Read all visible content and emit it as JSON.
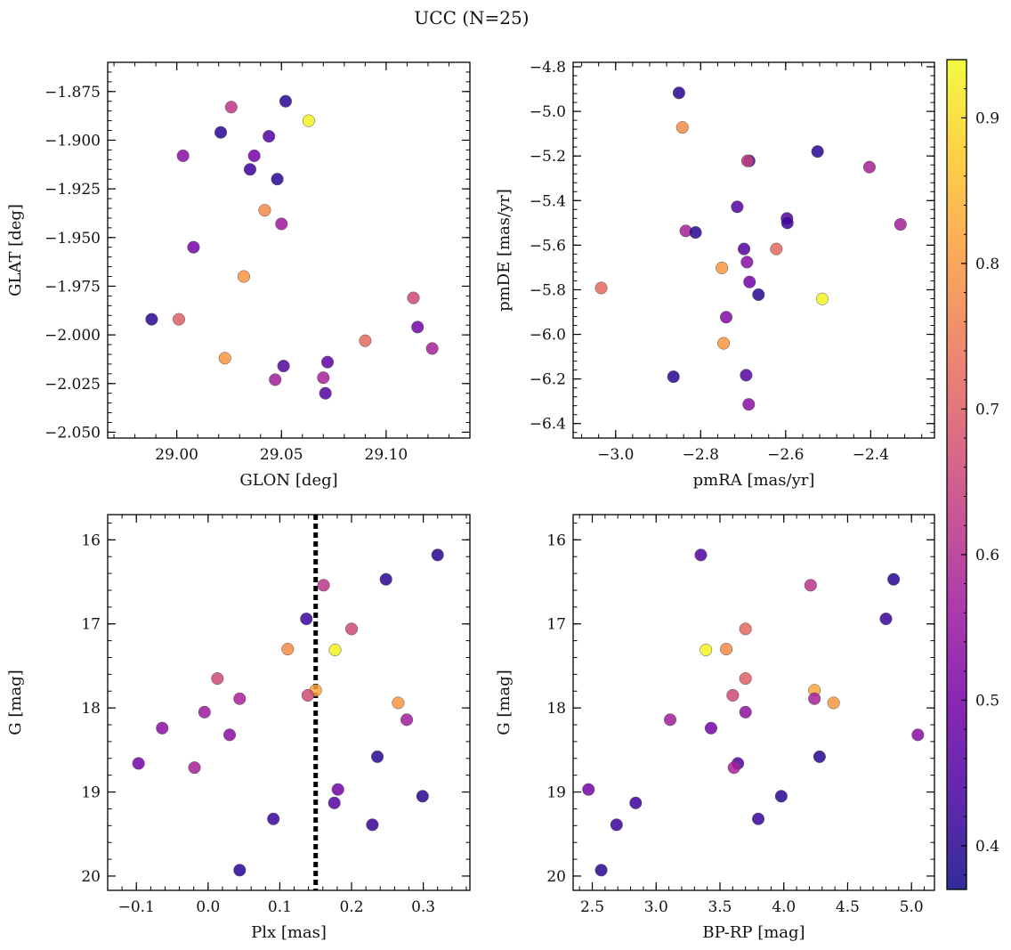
{
  "figure": {
    "title": "UCC (N=25)",
    "colorbar": {
      "range": [
        0.37,
        0.94
      ],
      "ticks": [
        0.4,
        0.5,
        0.6,
        0.7,
        0.8,
        0.9
      ],
      "tick_labels": [
        "0.4",
        "0.5",
        "0.6",
        "0.7",
        "0.8",
        "0.9"
      ],
      "colormap": [
        "#0d0887",
        "#46039f",
        "#7201a8",
        "#9c179e",
        "#bd3786",
        "#d8576b",
        "#ed7953",
        "#fb9f3a",
        "#fdca26",
        "#f0f921"
      ]
    }
  },
  "chart_data": [
    {
      "id": "glon-glat",
      "type": "scatter",
      "xlabel": "GLON [deg]",
      "ylabel": "GLAT [deg]",
      "xlim": [
        28.967,
        29.14
      ],
      "ylim": [
        -2.053,
        -1.86
      ],
      "xticks": [
        29.0,
        29.05,
        29.1
      ],
      "xtick_labels": [
        "29.00",
        "29.05",
        "29.10"
      ],
      "yticks": [
        -1.875,
        -1.9,
        -1.925,
        -1.95,
        -1.975,
        -2.0,
        -2.025,
        -2.05
      ],
      "ytick_labels": [
        "−1.875",
        "−1.900",
        "−1.925",
        "−1.950",
        "−1.975",
        "−2.000",
        "−2.025",
        "−2.050"
      ],
      "y_inverted": false,
      "points": [
        {
          "x": 29.052,
          "y": -1.88,
          "c": 0.4
        },
        {
          "x": 29.026,
          "y": -1.883,
          "c": 0.62
        },
        {
          "x": 29.063,
          "y": -1.89,
          "c": 0.93
        },
        {
          "x": 29.021,
          "y": -1.896,
          "c": 0.4
        },
        {
          "x": 29.044,
          "y": -1.898,
          "c": 0.45
        },
        {
          "x": 29.003,
          "y": -1.908,
          "c": 0.53
        },
        {
          "x": 29.037,
          "y": -1.908,
          "c": 0.5
        },
        {
          "x": 29.035,
          "y": -1.915,
          "c": 0.42
        },
        {
          "x": 29.048,
          "y": -1.92,
          "c": 0.4
        },
        {
          "x": 29.042,
          "y": -1.936,
          "c": 0.78
        },
        {
          "x": 29.05,
          "y": -1.943,
          "c": 0.56
        },
        {
          "x": 29.008,
          "y": -1.955,
          "c": 0.5
        },
        {
          "x": 29.032,
          "y": -1.97,
          "c": 0.8
        },
        {
          "x": 29.113,
          "y": -1.981,
          "c": 0.66
        },
        {
          "x": 28.988,
          "y": -1.992,
          "c": 0.4
        },
        {
          "x": 29.001,
          "y": -1.992,
          "c": 0.7
        },
        {
          "x": 29.115,
          "y": -1.996,
          "c": 0.5
        },
        {
          "x": 29.09,
          "y": -2.003,
          "c": 0.72
        },
        {
          "x": 29.122,
          "y": -2.007,
          "c": 0.58
        },
        {
          "x": 29.023,
          "y": -2.012,
          "c": 0.8
        },
        {
          "x": 29.072,
          "y": -2.014,
          "c": 0.47
        },
        {
          "x": 29.051,
          "y": -2.016,
          "c": 0.45
        },
        {
          "x": 29.07,
          "y": -2.022,
          "c": 0.58
        },
        {
          "x": 29.047,
          "y": -2.023,
          "c": 0.57
        },
        {
          "x": 29.071,
          "y": -2.03,
          "c": 0.45
        }
      ]
    },
    {
      "id": "pmra-pmde",
      "type": "scatter",
      "xlabel": "pmRA [mas/yr]",
      "ylabel": "pmDE [mas/yr]",
      "xlim": [
        -3.1,
        -2.25
      ],
      "ylim": [
        -6.465,
        -4.78
      ],
      "xticks": [
        -3.0,
        -2.8,
        -2.6,
        -2.4
      ],
      "xtick_labels": [
        "−3.0",
        "−2.8",
        "−2.6",
        "−2.4"
      ],
      "yticks": [
        -4.8,
        -5.0,
        -5.2,
        -5.4,
        -5.6,
        -5.8,
        -6.0,
        -6.2,
        -6.4
      ],
      "ytick_labels": [
        "−4.8",
        "−5.0",
        "−5.2",
        "−5.4",
        "−5.6",
        "−5.8",
        "−6.0",
        "−6.2",
        "−6.4"
      ],
      "y_inverted": false,
      "points": [
        {
          "x": -2.851,
          "y": -4.917,
          "c": 0.4
        },
        {
          "x": -2.843,
          "y": -5.072,
          "c": 0.78
        },
        {
          "x": -2.525,
          "y": -5.18,
          "c": 0.4
        },
        {
          "x": -2.686,
          "y": -5.222,
          "c": 0.4
        },
        {
          "x": -2.69,
          "y": -5.222,
          "c": 0.64
        },
        {
          "x": -2.403,
          "y": -5.25,
          "c": 0.58
        },
        {
          "x": -2.714,
          "y": -5.428,
          "c": 0.45
        },
        {
          "x": -2.597,
          "y": -5.48,
          "c": 0.45
        },
        {
          "x": -2.596,
          "y": -5.5,
          "c": 0.42
        },
        {
          "x": -2.33,
          "y": -5.507,
          "c": 0.57
        },
        {
          "x": -2.835,
          "y": -5.536,
          "c": 0.58
        },
        {
          "x": -2.812,
          "y": -5.543,
          "c": 0.4
        },
        {
          "x": -2.698,
          "y": -5.617,
          "c": 0.45
        },
        {
          "x": -2.622,
          "y": -5.617,
          "c": 0.72
        },
        {
          "x": -2.691,
          "y": -5.676,
          "c": 0.53
        },
        {
          "x": -2.75,
          "y": -5.702,
          "c": 0.8
        },
        {
          "x": -2.685,
          "y": -5.765,
          "c": 0.5
        },
        {
          "x": -3.034,
          "y": -5.792,
          "c": 0.72
        },
        {
          "x": -2.664,
          "y": -5.822,
          "c": 0.4
        },
        {
          "x": -2.514,
          "y": -5.841,
          "c": 0.93
        },
        {
          "x": -2.74,
          "y": -5.923,
          "c": 0.52
        },
        {
          "x": -2.746,
          "y": -6.04,
          "c": 0.8
        },
        {
          "x": -2.693,
          "y": -6.183,
          "c": 0.45
        },
        {
          "x": -2.864,
          "y": -6.19,
          "c": 0.4
        },
        {
          "x": -2.687,
          "y": -6.314,
          "c": 0.53
        }
      ]
    },
    {
      "id": "plx-g",
      "type": "scatter",
      "xlabel": "Plx [mas]",
      "ylabel": "G [mag]",
      "xlim": [
        -0.14,
        0.365
      ],
      "ylim": [
        15.7,
        20.17
      ],
      "xticks": [
        -0.1,
        0.0,
        0.1,
        0.2,
        0.3
      ],
      "xtick_labels": [
        "−0.1",
        "0.0",
        "0.1",
        "0.2",
        "0.3"
      ],
      "yticks": [
        16,
        17,
        18,
        19,
        20
      ],
      "ytick_labels": [
        "16",
        "17",
        "18",
        "19",
        "20"
      ],
      "y_inverted": true,
      "vline": 0.15,
      "points": [
        {
          "x": 0.32,
          "y": 16.18,
          "c": 0.4
        },
        {
          "x": 0.161,
          "y": 16.54,
          "c": 0.62
        },
        {
          "x": 0.248,
          "y": 16.47,
          "c": 0.4
        },
        {
          "x": 0.137,
          "y": 16.94,
          "c": 0.42
        },
        {
          "x": 0.2,
          "y": 17.06,
          "c": 0.66
        },
        {
          "x": 0.111,
          "y": 17.3,
          "c": 0.78
        },
        {
          "x": 0.177,
          "y": 17.31,
          "c": 0.93
        },
        {
          "x": 0.013,
          "y": 17.65,
          "c": 0.66
        },
        {
          "x": 0.15,
          "y": 17.79,
          "c": 0.82
        },
        {
          "x": 0.139,
          "y": 17.85,
          "c": 0.66
        },
        {
          "x": 0.044,
          "y": 17.89,
          "c": 0.58
        },
        {
          "x": 0.265,
          "y": 17.94,
          "c": 0.8
        },
        {
          "x": -0.005,
          "y": 18.05,
          "c": 0.56
        },
        {
          "x": 0.277,
          "y": 18.14,
          "c": 0.57
        },
        {
          "x": -0.064,
          "y": 18.24,
          "c": 0.53
        },
        {
          "x": 0.03,
          "y": 18.32,
          "c": 0.53
        },
        {
          "x": 0.236,
          "y": 18.58,
          "c": 0.4
        },
        {
          "x": -0.097,
          "y": 18.66,
          "c": 0.5
        },
        {
          "x": -0.019,
          "y": 18.71,
          "c": 0.58
        },
        {
          "x": 0.181,
          "y": 18.97,
          "c": 0.5
        },
        {
          "x": 0.299,
          "y": 19.05,
          "c": 0.4
        },
        {
          "x": 0.176,
          "y": 19.13,
          "c": 0.45
        },
        {
          "x": 0.091,
          "y": 19.32,
          "c": 0.42
        },
        {
          "x": 0.229,
          "y": 19.39,
          "c": 0.42
        },
        {
          "x": 0.044,
          "y": 19.93,
          "c": 0.4
        }
      ]
    },
    {
      "id": "bprp-g",
      "type": "scatter",
      "xlabel": "BP-RP [mag]",
      "ylabel": "G [mag]",
      "xlim": [
        2.35,
        5.18
      ],
      "ylim": [
        15.7,
        20.17
      ],
      "xticks": [
        2.5,
        3.0,
        3.5,
        4.0,
        4.5,
        5.0
      ],
      "xtick_labels": [
        "2.5",
        "3.0",
        "3.5",
        "4.0",
        "4.5",
        "5.0"
      ],
      "yticks": [
        16,
        17,
        18,
        19,
        20
      ],
      "ytick_labels": [
        "16",
        "17",
        "18",
        "19",
        "20"
      ],
      "y_inverted": true,
      "points": [
        {
          "x": 3.35,
          "y": 16.18,
          "c": 0.45
        },
        {
          "x": 4.86,
          "y": 16.47,
          "c": 0.4
        },
        {
          "x": 4.21,
          "y": 16.54,
          "c": 0.62
        },
        {
          "x": 4.8,
          "y": 16.94,
          "c": 0.42
        },
        {
          "x": 3.7,
          "y": 17.06,
          "c": 0.72
        },
        {
          "x": 3.39,
          "y": 17.31,
          "c": 0.93
        },
        {
          "x": 3.55,
          "y": 17.3,
          "c": 0.78
        },
        {
          "x": 3.7,
          "y": 17.65,
          "c": 0.7
        },
        {
          "x": 4.24,
          "y": 17.79,
          "c": 0.82
        },
        {
          "x": 3.6,
          "y": 17.85,
          "c": 0.66
        },
        {
          "x": 4.24,
          "y": 17.89,
          "c": 0.58
        },
        {
          "x": 4.39,
          "y": 17.94,
          "c": 0.8
        },
        {
          "x": 3.7,
          "y": 18.05,
          "c": 0.54
        },
        {
          "x": 3.11,
          "y": 18.14,
          "c": 0.57
        },
        {
          "x": 3.43,
          "y": 18.24,
          "c": 0.5
        },
        {
          "x": 5.05,
          "y": 18.32,
          "c": 0.53
        },
        {
          "x": 4.28,
          "y": 18.58,
          "c": 0.4
        },
        {
          "x": 3.64,
          "y": 18.66,
          "c": 0.45
        },
        {
          "x": 3.61,
          "y": 18.71,
          "c": 0.58
        },
        {
          "x": 2.47,
          "y": 18.97,
          "c": 0.5
        },
        {
          "x": 3.98,
          "y": 19.05,
          "c": 0.4
        },
        {
          "x": 2.84,
          "y": 19.13,
          "c": 0.42
        },
        {
          "x": 3.8,
          "y": 19.32,
          "c": 0.42
        },
        {
          "x": 2.69,
          "y": 19.39,
          "c": 0.42
        },
        {
          "x": 2.57,
          "y": 19.93,
          "c": 0.4
        }
      ]
    }
  ]
}
